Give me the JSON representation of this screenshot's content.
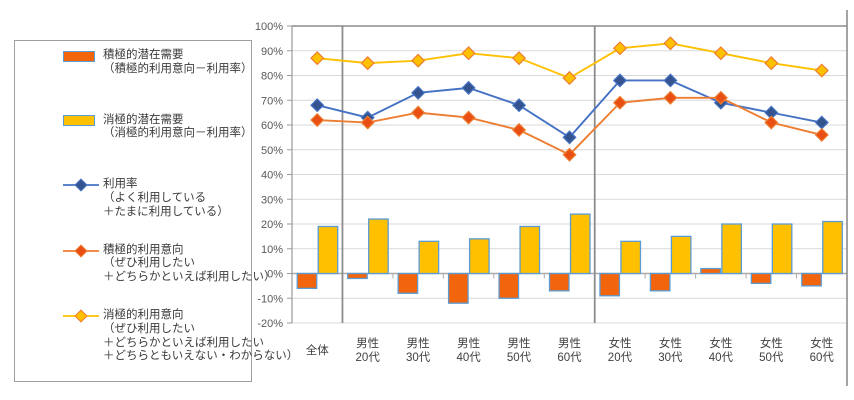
{
  "legend": {
    "items": [
      {
        "id": "positive-latent-demand",
        "marker": {
          "type": "bar",
          "fill": "#f2650c",
          "stroke": "#5b9bd5"
        },
        "lines": [
          "積極的潜在需要",
          "（積極的利用意向－利用率）"
        ]
      },
      {
        "id": "negative-latent-demand",
        "marker": {
          "type": "bar",
          "fill": "#ffc000",
          "stroke": "#5b9bd5"
        },
        "lines": [
          "消極的潜在需要",
          "（消極的利用意向－利用率）"
        ]
      },
      {
        "id": "usage-rate",
        "marker": {
          "type": "line",
          "line": "#4472c4",
          "fill": "#35548f",
          "stroke": "#4472c4"
        },
        "lines": [
          "利用率",
          "（よく利用している",
          "＋たまに利用している）"
        ]
      },
      {
        "id": "positive-intent",
        "marker": {
          "type": "line",
          "line": "#ed7d31",
          "fill": "#e94f12",
          "stroke": "#ed7d31"
        },
        "lines": [
          "積極的利用意向",
          "（ぜひ利用したい",
          "＋どちらかといえば利用したい）"
        ]
      },
      {
        "id": "negative-intent",
        "marker": {
          "type": "line",
          "line": "#ffc000",
          "fill": "#ffc000",
          "stroke": "#ed7d31"
        },
        "lines": [
          "消極的利用意向",
          "（ぜひ利用したい",
          "＋どちらかといえば利用したい",
          "＋どちらともいえない・わからない）"
        ]
      }
    ]
  },
  "chart_data": {
    "type": "combo-bar-line",
    "categories": [
      "全体",
      "男性20代",
      "男性30代",
      "男性40代",
      "男性50代",
      "男性60代",
      "女性20代",
      "女性30代",
      "女性40代",
      "女性50代",
      "女性60代"
    ],
    "category_lines": [
      [
        "全体"
      ],
      [
        "男性",
        "20代"
      ],
      [
        "男性",
        "30代"
      ],
      [
        "男性",
        "40代"
      ],
      [
        "男性",
        "50代"
      ],
      [
        "男性",
        "60代"
      ],
      [
        "女性",
        "20代"
      ],
      [
        "女性",
        "30代"
      ],
      [
        "女性",
        "40代"
      ],
      [
        "女性",
        "50代"
      ],
      [
        "女性",
        "60代"
      ]
    ],
    "y_axis": {
      "min": -20,
      "max": 100,
      "step": 10,
      "tick_labels": [
        "100%",
        "90%",
        "80%",
        "70%",
        "60%",
        "50%",
        "40%",
        "30%",
        "20%",
        "10%",
        "0%",
        "-10%",
        "-20%"
      ]
    },
    "grid": true,
    "legend_position": "left",
    "separators_after_category_index": [
      0,
      5
    ],
    "bar_series": [
      {
        "name": "積極的潜在需要（積極的利用意向－利用率）",
        "values": [
          -6,
          -2,
          -8,
          -12,
          -10,
          -7,
          -9,
          -7,
          2,
          -4,
          -5
        ],
        "fill": "#f2650c",
        "stroke": "#5b9bd5"
      },
      {
        "name": "消極的潜在需要（消極的利用意向－利用率）",
        "values": [
          19,
          22,
          13,
          14,
          19,
          24,
          13,
          15,
          20,
          20,
          21
        ],
        "fill": "#ffc000",
        "stroke": "#5b9bd5"
      }
    ],
    "line_series": [
      {
        "name": "利用率（よく利用している＋たまに利用している）",
        "values": [
          68,
          63,
          73,
          75,
          68,
          55,
          78,
          78,
          69,
          65,
          61
        ],
        "line": "#4472c4",
        "marker_fill": "#35548f",
        "marker_stroke": "#4472c4"
      },
      {
        "name": "積極的利用意向（ぜひ利用したい＋どちらかといえば利用したい）",
        "values": [
          62,
          61,
          65,
          63,
          58,
          48,
          69,
          71,
          71,
          61,
          56
        ],
        "line": "#ed7d31",
        "marker_fill": "#e94f12",
        "marker_stroke": "#ed7d31"
      },
      {
        "name": "消極的利用意向（ぜひ利用したい＋どちらかといえば利用したい＋どちらともいえない・わからない）",
        "values": [
          87,
          85,
          86,
          89,
          87,
          79,
          91,
          93,
          89,
          85,
          82
        ],
        "line": "#ffc000",
        "marker_fill": "#ffc000",
        "marker_stroke": "#ed7d31"
      }
    ],
    "colors": {
      "grid": "#d9d9d9",
      "zero_axis": "#ababab",
      "plot_border": "#9a9a9a",
      "separator": "#8c8c8c",
      "tick_text": "#595959",
      "category_text": "#404040"
    }
  }
}
